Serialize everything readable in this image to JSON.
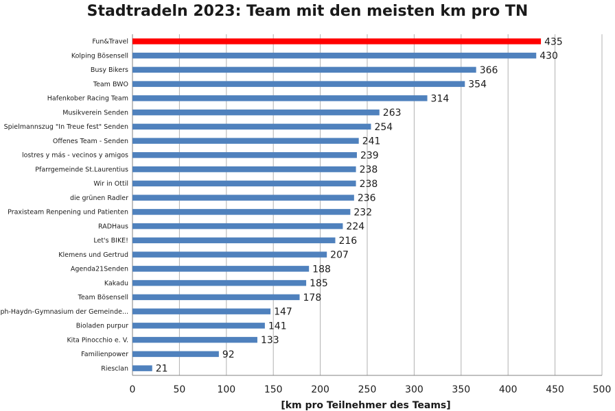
{
  "chart_data": {
    "type": "bar",
    "orientation": "horizontal",
    "title": "Stadtradeln 2023: Team mit den meisten km pro TN",
    "xlabel": "[km pro Teilnehmer des Teams]",
    "ylabel": "",
    "xlim": [
      0,
      500
    ],
    "x_ticks": [
      0,
      50,
      100,
      150,
      200,
      250,
      300,
      350,
      400,
      450,
      500
    ],
    "grid": "vertical",
    "categories": [
      "Fun&Travel",
      "Kolping Bösensell",
      "Busy Bikers",
      "Team BWO",
      "Hafenkober Racing Team",
      "Musikverein Senden",
      "Spielmannszug \"In Treue fest\" Senden",
      "Offenes Team - Senden",
      "lostres y más - vecinos y amigos",
      "Pfarrgemeinde St.Laurentius",
      "Wir in Ottil",
      "die grünen Radler",
      "Praxisteam Renpening und Patienten",
      "RADHaus",
      "Let's BIKE!",
      "Klemens und Gertrud",
      "Agenda21Senden",
      "Kakadu",
      "Team Bösensell",
      "Joseph-Haydn-Gymnasium der Gemeinde...",
      "Bioladen purpur",
      "Kita Pinocchio e. V.",
      "Familienpower",
      "Riesclan"
    ],
    "values": [
      435,
      430,
      366,
      354,
      314,
      263,
      254,
      241,
      239,
      238,
      238,
      236,
      232,
      224,
      216,
      207,
      188,
      185,
      178,
      147,
      141,
      133,
      92,
      21
    ],
    "colors": {
      "default": "#4f81bd",
      "highlight": "#ff0000",
      "grid": "#b0b0b0",
      "axis": "#808080"
    },
    "highlight_index": 0
  }
}
